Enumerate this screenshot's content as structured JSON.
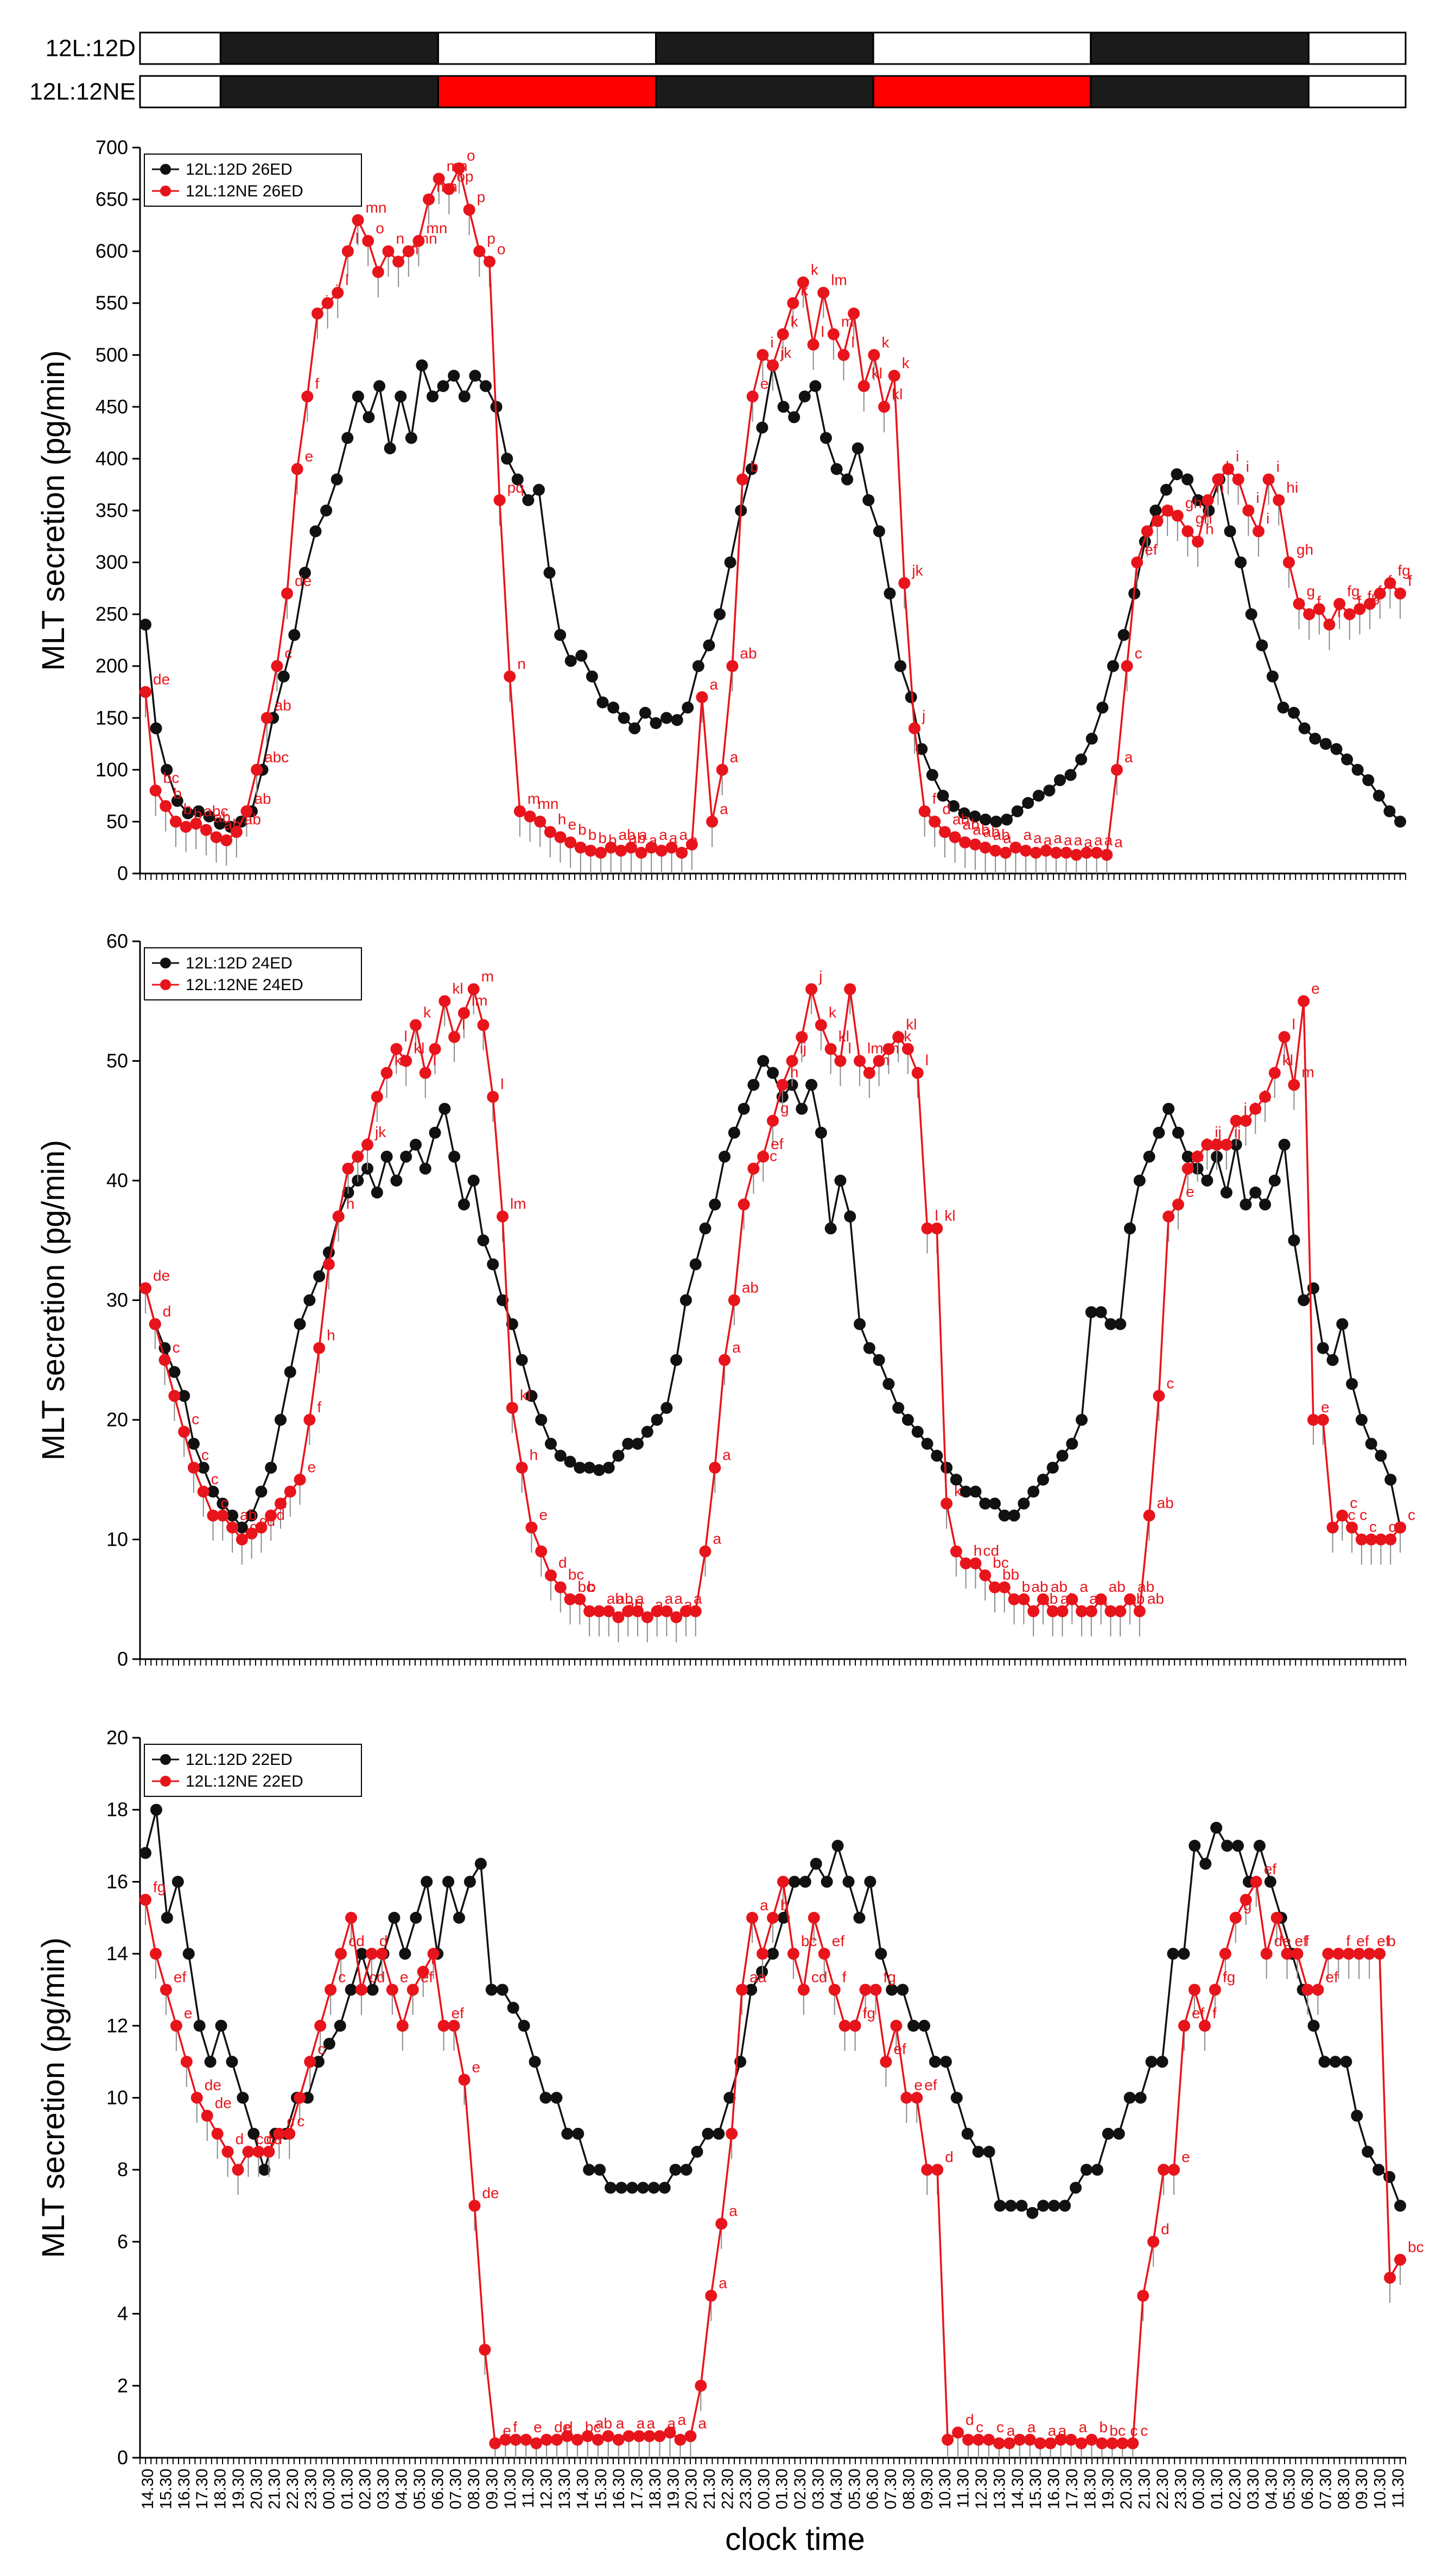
{
  "photoperiod_bars": [
    {
      "label": "12L:12D",
      "segments": [
        "white",
        "black",
        "white",
        "black",
        "white",
        "black",
        "white"
      ]
    },
    {
      "label": "12L:12NE",
      "segments": [
        "white",
        "black",
        "red",
        "black",
        "red",
        "black",
        "white"
      ]
    }
  ],
  "colors": {
    "black_series": "#111111",
    "red_series": "#e8141b",
    "night_bar": "#1b1b1b",
    "ne_bar": "#ff0000",
    "error_bar": "#8a8a8a"
  },
  "x_tick_labels": [
    "14.30",
    "15.30",
    "16.30",
    "17.30",
    "18.30",
    "19.30",
    "20.30",
    "21.30",
    "22.30",
    "23.30",
    "00.30",
    "01.30",
    "02.30",
    "03.30",
    "04.30",
    "05.30",
    "06.30",
    "07.30",
    "08.30",
    "09.30",
    "10.30",
    "11.30",
    "12.30",
    "13.30",
    "14.30",
    "15.30",
    "16.30",
    "17.30",
    "18.30",
    "19.30",
    "20.30",
    "21.30",
    "22.30",
    "23.30",
    "00.30",
    "01.30",
    "02.30",
    "03.30",
    "04.30",
    "05.30",
    "06.30",
    "07.30",
    "08.30",
    "09.30",
    "10.30",
    "11.30",
    "12.30",
    "13.30",
    "14.30",
    "15.30",
    "16.30",
    "17.30",
    "18.30",
    "19.30",
    "20.30",
    "21.30",
    "22.30",
    "23.30",
    "00.30",
    "01.30",
    "02.30",
    "03.30",
    "04.30",
    "05.30",
    "06.30",
    "07.30",
    "08.30",
    "09.30",
    "10.30",
    "11.30"
  ],
  "xlabel": "clock time",
  "chart_data": [
    {
      "type": "line",
      "ylabel": "MLT secretion (pg/min)",
      "ylim": [
        0,
        700
      ],
      "yticks": [
        0,
        50,
        100,
        150,
        200,
        250,
        300,
        350,
        400,
        450,
        500,
        550,
        600,
        650,
        700
      ],
      "legend_position": "top-left",
      "series": [
        {
          "name": "12L:12D 26ED",
          "color": "#111111",
          "values": [
            240,
            140,
            100,
            70,
            58,
            60,
            55,
            48,
            45,
            50,
            60,
            100,
            150,
            190,
            230,
            290,
            330,
            350,
            380,
            420,
            460,
            440,
            470,
            410,
            460,
            420,
            490,
            460,
            470,
            480,
            460,
            480,
            470,
            450,
            400,
            380,
            360,
            370,
            290,
            230,
            205,
            210,
            190,
            165,
            160,
            150,
            140,
            155,
            145,
            150,
            148,
            160,
            200,
            220,
            250,
            300,
            350,
            390,
            430,
            490,
            450,
            440,
            460,
            470,
            420,
            390,
            380,
            410,
            360,
            330,
            270,
            200,
            170,
            120,
            95,
            75,
            65,
            58,
            55,
            52,
            50,
            52,
            60,
            68,
            75,
            80,
            90,
            95,
            110,
            130,
            160,
            200,
            230,
            270,
            320,
            350,
            370,
            385,
            380,
            360,
            350,
            380,
            330,
            300,
            250,
            220,
            190,
            160,
            155,
            140,
            130,
            125,
            120,
            110,
            100,
            90,
            75,
            60,
            50
          ]
        },
        {
          "name": "12L:12NE 26ED",
          "color": "#e8141b",
          "values": [
            175,
            80,
            65,
            50,
            45,
            48,
            42,
            35,
            32,
            40,
            60,
            100,
            150,
            200,
            270,
            390,
            460,
            540,
            550,
            560,
            600,
            630,
            610,
            580,
            600,
            590,
            600,
            610,
            650,
            670,
            660,
            680,
            640,
            600,
            590,
            360,
            190,
            60,
            55,
            50,
            40,
            35,
            30,
            25,
            22,
            20,
            25,
            22,
            25,
            20,
            25,
            22,
            25,
            20,
            28,
            170,
            50,
            100,
            200,
            380,
            460,
            500,
            490,
            520,
            550,
            570,
            510,
            560,
            520,
            500,
            540,
            470,
            500,
            450,
            480,
            280,
            140,
            60,
            50,
            40,
            35,
            30,
            28,
            25,
            22,
            20,
            25,
            22,
            20,
            22,
            20,
            20,
            18,
            20,
            20,
            18,
            100,
            200,
            300,
            330,
            340,
            350,
            345,
            330,
            320,
            360,
            380,
            390,
            380,
            350,
            330,
            380,
            360,
            300,
            260,
            250,
            255,
            240,
            260,
            250,
            255,
            260,
            270,
            280,
            270
          ]
        }
      ],
      "labels_black": [],
      "labels_red": [
        "de",
        "bc",
        "b",
        "b",
        "b",
        "abc",
        "ab",
        "ab",
        "ab",
        "ab",
        "abc",
        "ab",
        "c",
        "de",
        "e",
        "f",
        "i",
        "j",
        "l",
        "l",
        "mn",
        "o",
        "n",
        "m",
        "mn",
        "mn",
        "mn",
        "mn",
        "op",
        "o",
        "p",
        "p",
        "o",
        "pq",
        "n",
        "m",
        "mn",
        "h",
        "e",
        "b",
        "b",
        "b",
        "b",
        "ab",
        "ab",
        "a",
        "a",
        "a",
        "a",
        "a",
        "a",
        "a",
        "a",
        "a",
        "ab",
        "b",
        "e",
        "i",
        "jk",
        "k",
        "k",
        "k",
        "l",
        "lm",
        "m",
        "l",
        "kl",
        "k",
        "kl",
        "k",
        "jk",
        "j",
        "f",
        "d",
        "ab",
        "ab",
        "ab",
        "ab",
        "ab",
        "a",
        "a",
        "a",
        "a",
        "a",
        "a",
        "a",
        "a",
        "a",
        "a",
        "a",
        "a",
        "c",
        "ef",
        "g",
        "g",
        "gh",
        "gh",
        "h",
        "h",
        "h",
        "i",
        "i",
        "i",
        "i",
        "i",
        "hi",
        "gh",
        "g",
        "f",
        "f",
        "fg",
        "f",
        "fg",
        "f",
        "f",
        "fg",
        "f"
      ]
    },
    {
      "type": "line",
      "ylabel": "MLT secretion (pg/min)",
      "ylim": [
        0,
        60
      ],
      "yticks": [
        0,
        10,
        20,
        30,
        40,
        50,
        60
      ],
      "legend_position": "top-left",
      "series": [
        {
          "name": "12L:12D 24ED",
          "color": "#111111",
          "values": [
            31,
            28,
            26,
            24,
            22,
            18,
            16,
            14,
            13,
            12,
            11,
            12,
            14,
            16,
            20,
            24,
            28,
            30,
            32,
            34,
            37,
            39,
            40,
            41,
            39,
            42,
            40,
            42,
            43,
            41,
            44,
            46,
            42,
            38,
            40,
            35,
            33,
            30,
            28,
            25,
            22,
            20,
            18,
            17,
            16.5,
            16,
            16,
            15.8,
            16,
            17,
            18,
            18,
            19,
            20,
            21,
            25,
            30,
            33,
            36,
            38,
            42,
            44,
            46,
            48,
            50,
            49,
            47,
            48,
            46,
            48,
            44,
            36,
            40,
            37,
            28,
            26,
            25,
            23,
            21,
            20,
            19,
            18,
            17,
            16,
            15,
            14,
            14,
            13,
            13,
            12,
            12,
            13,
            14,
            15,
            16,
            17,
            18,
            20,
            29,
            29,
            28,
            28,
            36,
            40,
            42,
            44,
            46,
            44,
            42,
            41,
            40,
            42,
            39,
            43,
            38,
            39,
            38,
            40,
            43,
            35,
            30,
            31,
            26,
            25,
            28,
            23,
            20,
            18,
            17,
            15,
            11
          ]
        },
        {
          "name": "12L:12NE 24ED",
          "color": "#e8141b",
          "values": [
            31,
            28,
            25,
            22,
            19,
            16,
            14,
            12,
            12,
            11,
            10,
            10.5,
            11,
            12,
            13,
            14,
            15,
            20,
            26,
            33,
            37,
            41,
            42,
            43,
            47,
            49,
            51,
            50,
            53,
            49,
            51,
            55,
            52,
            54,
            56,
            53,
            47,
            37,
            21,
            16,
            11,
            9,
            7,
            6,
            5,
            5,
            4,
            4,
            4,
            3.5,
            4,
            4,
            3.5,
            4,
            4,
            3.5,
            4,
            4,
            9,
            16,
            25,
            30,
            38,
            41,
            42,
            45,
            48,
            50,
            52,
            56,
            53,
            51,
            50,
            56,
            50,
            49,
            50,
            51,
            52,
            51,
            49,
            36,
            36,
            13,
            9,
            8,
            8,
            7,
            6,
            6,
            5,
            5,
            4,
            5,
            4,
            4,
            5,
            4,
            4,
            5,
            4,
            4,
            5,
            4,
            12,
            22,
            37,
            38,
            41,
            42,
            43,
            43,
            43,
            45,
            45,
            46,
            47,
            49,
            52,
            48,
            55,
            20,
            20,
            11,
            12,
            11,
            10,
            10,
            10,
            10,
            11
          ]
        }
      ],
      "labels_red": [
        "de",
        "d",
        "c",
        "c",
        "c",
        "c",
        "c",
        "ab",
        "c",
        "cd",
        "cd",
        "d",
        "e",
        "e",
        "f",
        "h",
        "h",
        "i",
        "i",
        "jk",
        "kl",
        "l",
        "kl",
        "k",
        "l",
        "kl",
        "l",
        "lm",
        "m",
        "l",
        "lm",
        "kl",
        "h",
        "e",
        "d",
        "bc",
        "bc",
        "b",
        "ab",
        "ab",
        "ab",
        "a",
        "a",
        "a",
        "a",
        "a",
        "a",
        "a",
        "a",
        "a",
        "ab",
        "bc",
        "ef",
        "g",
        "h",
        "ij",
        "j",
        "k",
        "kl",
        "l",
        "lm",
        "m",
        "m",
        "kk",
        "kl",
        "l",
        "l",
        "kl",
        "k",
        "h",
        "cd",
        "bc",
        "bb",
        "b",
        "ab",
        "ab",
        "ab",
        "ab",
        "a",
        "a",
        "a",
        "ab",
        "ab",
        "ab",
        "ab",
        "ab",
        "c",
        "e",
        "h",
        "hi",
        "ij",
        "ij",
        "j",
        "k",
        "k",
        "kl",
        "l",
        "m",
        "e",
        "e",
        "cc",
        "c",
        "c",
        "c",
        "c",
        "c",
        "c"
      ]
    },
    {
      "type": "line",
      "ylabel": "MLT secretion (pg/min)",
      "ylim": [
        0,
        20
      ],
      "yticks": [
        0,
        2,
        4,
        6,
        8,
        10,
        12,
        14,
        16,
        18,
        20
      ],
      "legend_position": "top-left",
      "series": [
        {
          "name": "12L:12D 22ED",
          "color": "#111111",
          "values": [
            16.8,
            18,
            15,
            16,
            14,
            12,
            11,
            12,
            11,
            10,
            9,
            8,
            9,
            9,
            10,
            10,
            11,
            11.5,
            12,
            13,
            14,
            13,
            14,
            15,
            14,
            15,
            16,
            14,
            16,
            15,
            16,
            16.5,
            13,
            13,
            12.5,
            12,
            11,
            10,
            10,
            9,
            9,
            8,
            8,
            7.5,
            7.5,
            7.5,
            7.5,
            7.5,
            7.5,
            8,
            8,
            8.5,
            9,
            9,
            10,
            11,
            13,
            13.5,
            14,
            15,
            16,
            16,
            16.5,
            16,
            17,
            16,
            15,
            16,
            14,
            13,
            13,
            12,
            12,
            11,
            11,
            10,
            9,
            8.5,
            8.5,
            7,
            7,
            7,
            6.8,
            7,
            7,
            7,
            7.5,
            8,
            8,
            9,
            9,
            10,
            10,
            11,
            11,
            14,
            14,
            17,
            16.5,
            17.5,
            17,
            17,
            16,
            17,
            16,
            15,
            14,
            13,
            12,
            11,
            11,
            11,
            9.5,
            8.5,
            8,
            7.8,
            7
          ]
        },
        {
          "name": "12L:12NE 22ED",
          "color": "#e8141b",
          "values": [
            15.5,
            14,
            13,
            12,
            11,
            10,
            9.5,
            9,
            8.5,
            8,
            8.5,
            8.5,
            8.5,
            9,
            9,
            10,
            11,
            12,
            13,
            14,
            15,
            13,
            14,
            14,
            13,
            12,
            13,
            13.5,
            14,
            12,
            12,
            10.5,
            7,
            3,
            0.4,
            0.5,
            0.5,
            0.5,
            0.4,
            0.5,
            0.5,
            0.6,
            0.5,
            0.6,
            0.5,
            0.6,
            0.5,
            0.6,
            0.6,
            0.6,
            0.6,
            0.7,
            0.5,
            0.6,
            2,
            4.5,
            6.5,
            9,
            13,
            15,
            14,
            15,
            16,
            14,
            13,
            15,
            14,
            13,
            12,
            12,
            13,
            13,
            11,
            12,
            10,
            10,
            8,
            8,
            0.5,
            0.7,
            0.5,
            0.5,
            0.5,
            0.4,
            0.4,
            0.5,
            0.5,
            0.4,
            0.4,
            0.5,
            0.5,
            0.4,
            0.5,
            0.4,
            0.4,
            0.4,
            0.4,
            4.5,
            6,
            8,
            8,
            12,
            13,
            12,
            13,
            14,
            15,
            15.5,
            16,
            14,
            15,
            14,
            14,
            13,
            13,
            14,
            14,
            14,
            14,
            14,
            14,
            5,
            5.5
          ]
        }
      ],
      "labels_red": [
        "fg",
        "ef",
        "e",
        "de",
        "de",
        "d",
        "cd",
        "cd",
        "c",
        "c",
        "c",
        "c",
        "cd",
        "cd",
        "d",
        "e",
        "ef",
        "f",
        "ef",
        "e",
        "de",
        "e",
        "f",
        "e",
        "de",
        "d",
        "bc",
        "ab",
        "a",
        "a",
        "a",
        "a",
        "a",
        "a",
        "a",
        "a",
        "aa",
        "a",
        "b",
        "bc",
        "cd",
        "ef",
        "f",
        "fg",
        "fg",
        "ef",
        "e",
        "ef",
        "d",
        "d",
        "c",
        "c",
        "a",
        "a",
        "a",
        "a",
        "a",
        "b",
        "bc",
        "c",
        "c",
        "d",
        "e",
        "ef",
        "f",
        "fg",
        "g",
        "ef",
        "de",
        "ef",
        "f",
        "ef",
        "f",
        "ef",
        "ef",
        "b",
        "bc"
      ]
    }
  ]
}
